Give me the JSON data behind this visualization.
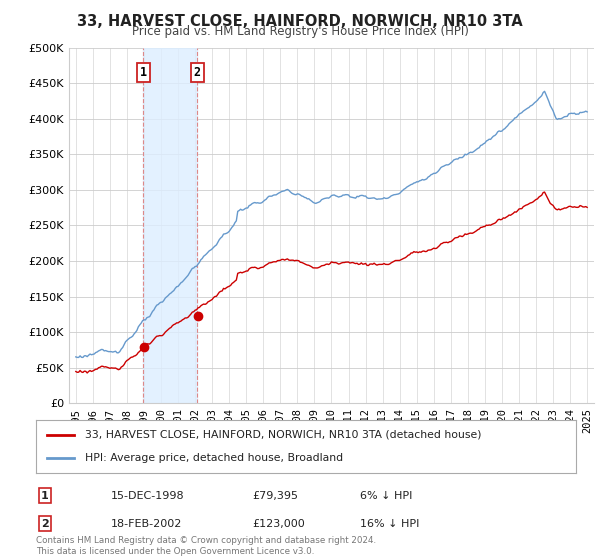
{
  "title": "33, HARVEST CLOSE, HAINFORD, NORWICH, NR10 3TA",
  "subtitle": "Price paid vs. HM Land Registry's House Price Index (HPI)",
  "legend_line1": "33, HARVEST CLOSE, HAINFORD, NORWICH, NR10 3TA (detached house)",
  "legend_line2": "HPI: Average price, detached house, Broadland",
  "sale1_date": "15-DEC-1998",
  "sale1_price": "£79,395",
  "sale1_hpi": "6% ↓ HPI",
  "sale1_year": 1998.96,
  "sale1_value": 79395,
  "sale2_date": "18-FEB-2002",
  "sale2_price": "£123,000",
  "sale2_hpi": "16% ↓ HPI",
  "sale2_year": 2002.13,
  "sale2_value": 123000,
  "footer": "Contains HM Land Registry data © Crown copyright and database right 2024.\nThis data is licensed under the Open Government Licence v3.0.",
  "ylim": [
    0,
    500000
  ],
  "yticks": [
    0,
    50000,
    100000,
    150000,
    200000,
    250000,
    300000,
    350000,
    400000,
    450000,
    500000
  ],
  "ytick_labels": [
    "£0",
    "£50K",
    "£100K",
    "£150K",
    "£200K",
    "£250K",
    "£300K",
    "£350K",
    "£400K",
    "£450K",
    "£500K"
  ],
  "red_color": "#cc0000",
  "blue_color": "#6699cc",
  "shade_color": "#ddeeff",
  "dashed_color": "#dd8888",
  "background_color": "#ffffff",
  "grid_color": "#cccccc",
  "xlim_left": 1994.6,
  "xlim_right": 2025.4
}
